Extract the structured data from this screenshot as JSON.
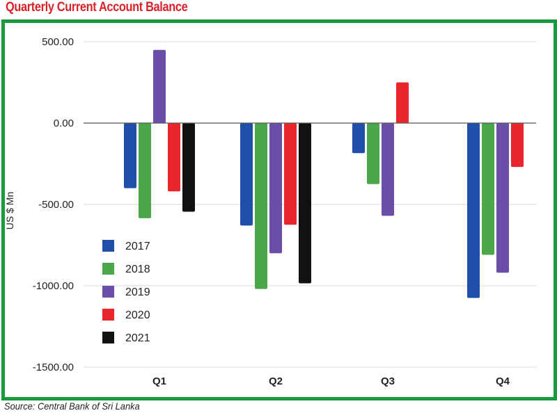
{
  "header": {
    "title": "Quarterly Current Account Balance"
  },
  "footer": {
    "source": "Source: Central Bank of Sri Lanka"
  },
  "chart_data": {
    "type": "bar",
    "title": "Quarterly Current Account Balance",
    "xlabel": "",
    "ylabel": "US $ Mn",
    "ylim": [
      -1500,
      500
    ],
    "yticks": [
      500,
      0,
      -500,
      -1000,
      -1500
    ],
    "ytick_labels": [
      "500.00",
      "0.00",
      "-500.00",
      "-1000.00",
      "-1500.00"
    ],
    "grid": true,
    "legend_position": "left",
    "categories": [
      "Q1",
      "Q2",
      "Q3",
      "Q4"
    ],
    "series": [
      {
        "name": "2017",
        "color": "#1f4fa8",
        "values": [
          -400,
          -630,
          -185,
          -1075
        ]
      },
      {
        "name": "2018",
        "color": "#4aa84a",
        "values": [
          -585,
          -1020,
          -375,
          -810
        ]
      },
      {
        "name": "2019",
        "color": "#6a4ea8",
        "values": [
          450,
          -800,
          -570,
          -920
        ]
      },
      {
        "name": "2020",
        "color": "#e8262b",
        "values": [
          -420,
          -625,
          250,
          -270
        ]
      },
      {
        "name": "2021",
        "color": "#111111",
        "values": [
          -545,
          -985,
          null,
          null
        ]
      }
    ]
  }
}
